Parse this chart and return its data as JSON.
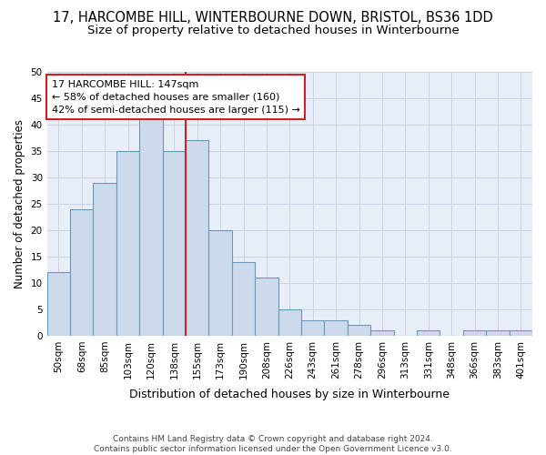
{
  "title": "17, HARCOMBE HILL, WINTERBOURNE DOWN, BRISTOL, BS36 1DD",
  "subtitle": "Size of property relative to detached houses in Winterbourne",
  "xlabel": "Distribution of detached houses by size in Winterbourne",
  "ylabel": "Number of detached properties",
  "footer_line1": "Contains HM Land Registry data © Crown copyright and database right 2024.",
  "footer_line2": "Contains public sector information licensed under the Open Government Licence v3.0.",
  "bar_labels": [
    "50sqm",
    "68sqm",
    "85sqm",
    "103sqm",
    "120sqm",
    "138sqm",
    "155sqm",
    "173sqm",
    "190sqm",
    "208sqm",
    "226sqm",
    "243sqm",
    "261sqm",
    "278sqm",
    "296sqm",
    "313sqm",
    "331sqm",
    "348sqm",
    "366sqm",
    "383sqm",
    "401sqm"
  ],
  "bar_values": [
    12,
    24,
    29,
    35,
    42,
    35,
    37,
    20,
    14,
    11,
    5,
    3,
    3,
    2,
    1,
    0,
    1,
    0,
    1,
    1,
    1
  ],
  "bar_color": "#ccdaeb",
  "bar_edge_color": "#6699bb",
  "annotation_line1": "17 HARCOMBE HILL: 147sqm",
  "annotation_line2": "← 58% of detached houses are smaller (160)",
  "annotation_line3": "42% of semi-detached houses are larger (115) →",
  "annotation_box_color": "#ffffff",
  "annotation_box_edge_color": "#cc2222",
  "property_line_x": 5.5,
  "property_line_color": "#cc2222",
  "ylim": [
    0,
    50
  ],
  "yticks": [
    0,
    5,
    10,
    15,
    20,
    25,
    30,
    35,
    40,
    45,
    50
  ],
  "grid_color": "#c8d4e4",
  "bg_color": "#e8eef8",
  "title_fontsize": 10.5,
  "subtitle_fontsize": 9.5,
  "xlabel_fontsize": 9,
  "ylabel_fontsize": 8.5,
  "tick_fontsize": 7.5,
  "annotation_fontsize": 8,
  "footer_fontsize": 6.5
}
